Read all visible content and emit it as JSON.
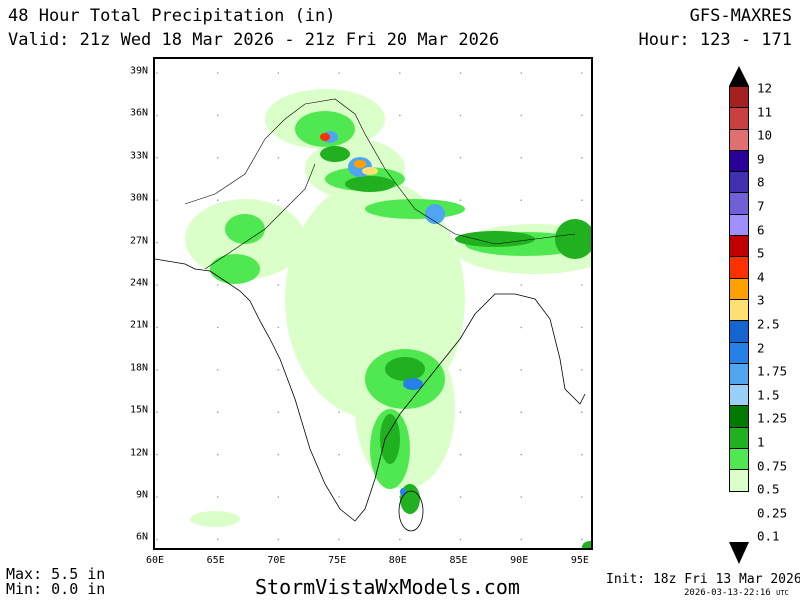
{
  "header": {
    "title": "48 Hour Total Precipitation (in)",
    "valid": "Valid: 21z Wed 18 Mar 2026 - 21z Fri 20 Mar 2026",
    "model": "GFS-MAXRES",
    "hours": "Hour: 123 - 171"
  },
  "map": {
    "lat_labels": [
      "39N",
      "36N",
      "33N",
      "30N",
      "27N",
      "24N",
      "21N",
      "18N",
      "15N",
      "12N",
      "9N",
      "6N"
    ],
    "lon_labels": [
      "60E",
      "65E",
      "70E",
      "75E",
      "80E",
      "85E",
      "90E",
      "95E"
    ]
  },
  "colorbar": {
    "labels": [
      "12",
      "11",
      "10",
      "9",
      "8",
      "7",
      "6",
      "5",
      "4",
      "3",
      "2.5",
      "2",
      "1.75",
      "1.5",
      "1.25",
      "1",
      "0.75",
      "0.5",
      "0.25",
      "0.1"
    ],
    "colors": [
      "#a52020",
      "#c84040",
      "#e07070",
      "#2a009a",
      "#4030b0",
      "#7060d8",
      "#a090ff",
      "#c00000",
      "#ff3000",
      "#ffa000",
      "#ffe070",
      "#1565d0",
      "#2580e8",
      "#50a5f0",
      "#98d0f8",
      "#007a00",
      "#20b020",
      "#50e850",
      "#daffc8"
    ]
  },
  "footer": {
    "max": "Max: 5.5 in",
    "min": "Min: 0.0 in",
    "site": "StormVistaWxModels.com",
    "init": "Init: 18z Fri 13 Mar 2026",
    "stamp": "2026-03-13-22:16",
    "utc": "UTC"
  }
}
